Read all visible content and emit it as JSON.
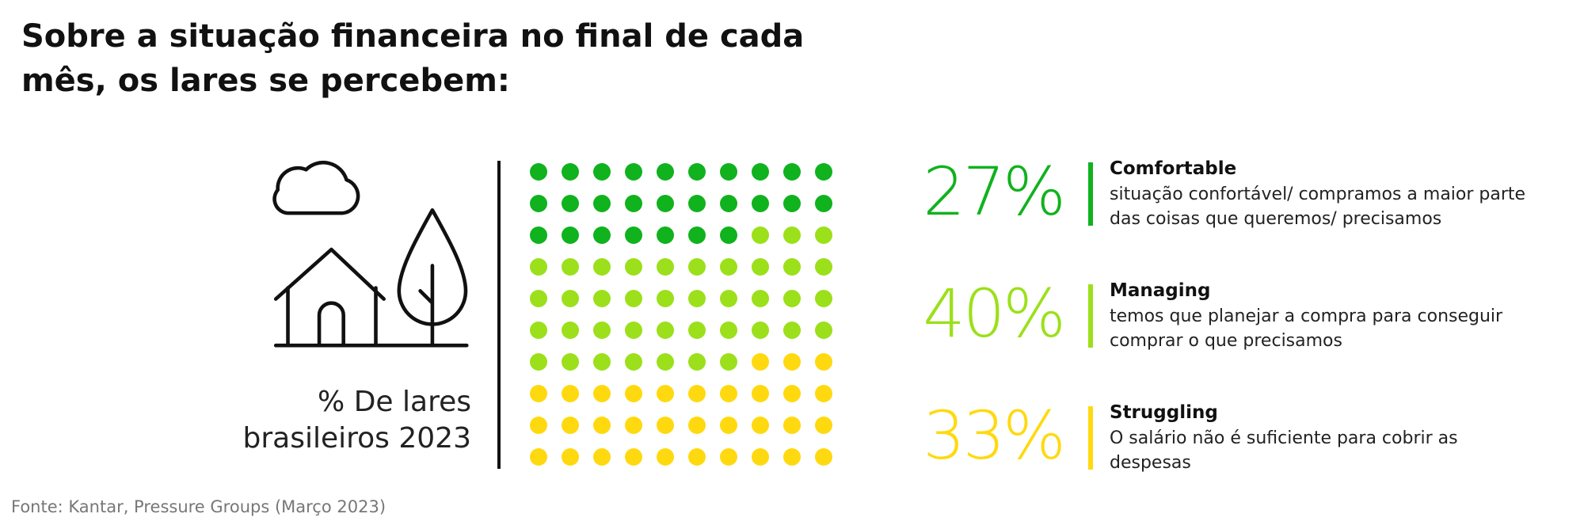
{
  "chart_data": {
    "type": "waffle",
    "title": "Sobre a situação financeira no final de cada mês, os lares se percebem:",
    "subtitle": "% De lares brasileiros 2023",
    "categories": [
      "Comfortable",
      "Managing",
      "Struggling"
    ],
    "values": [
      27,
      40,
      33
    ],
    "value_labels": [
      "27%",
      "40%",
      "33%"
    ],
    "colors": [
      "#10b21d",
      "#9be01a",
      "#ffd90f"
    ],
    "descriptions": [
      "situação confortável/ compramos a maior parte das coisas que queremos/ precisamos",
      "temos que planejar a compra para conseguir comprar o que precisamos",
      "O salário não é suficiente para cobrir as despesas"
    ],
    "source": "Fonte: Kantar, Pressure Groups (Março 2023)"
  }
}
